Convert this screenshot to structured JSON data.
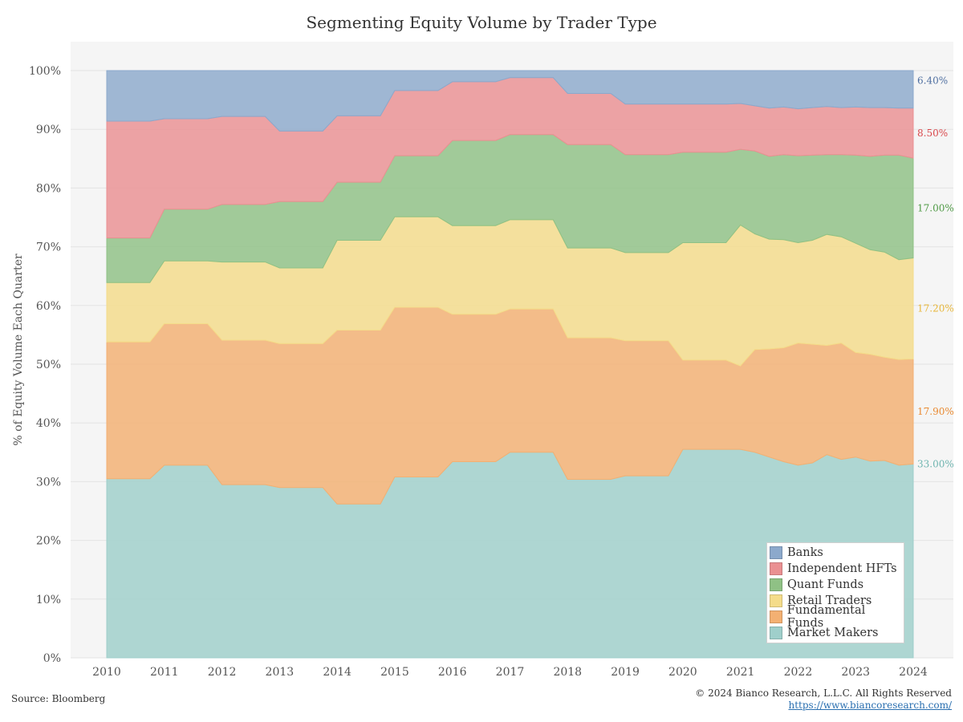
{
  "chart_data": {
    "type": "area",
    "title": "Segmenting Equity Volume by Trader Type",
    "ylabel": "% of Equity Volume Each Quarter",
    "xlabel": "",
    "ylim": [
      0,
      100
    ],
    "y_ticks": [
      "0%",
      "10%",
      "20%",
      "30%",
      "40%",
      "50%",
      "60%",
      "70%",
      "80%",
      "90%",
      "100%"
    ],
    "x_ticks": [
      "2010",
      "2011",
      "2012",
      "2013",
      "2014",
      "2015",
      "2016",
      "2017",
      "2018",
      "2019",
      "2020",
      "2021",
      "2022",
      "2023",
      "2024"
    ],
    "stacked": true,
    "grid": true,
    "legend_position": "bottom-right",
    "x": [
      2010,
      2010.75,
      2011,
      2011.75,
      2012,
      2012.75,
      2013,
      2013.75,
      2014,
      2014.75,
      2015,
      2015.75,
      2016,
      2016.75,
      2017,
      2017.75,
      2018,
      2018.75,
      2019,
      2019.75,
      2020,
      2020.75,
      2021,
      2021.25,
      2021.5,
      2021.75,
      2022,
      2022.25,
      2022.5,
      2022.75,
      2023,
      2023.25,
      2023.5,
      2023.75,
      2024
    ],
    "series": [
      {
        "name": "Market Makers",
        "color": "#9fcfcb",
        "values": [
          30.5,
          30.5,
          32.8,
          32.8,
          29.5,
          29.5,
          29.0,
          29.0,
          26.2,
          26.2,
          30.8,
          30.8,
          33.4,
          33.4,
          35.0,
          35.0,
          30.4,
          30.4,
          31.0,
          31.0,
          35.5,
          35.5,
          35.5,
          35.0,
          34.2,
          33.4,
          32.8,
          33.2,
          34.6,
          33.8,
          34.2,
          33.5,
          33.6,
          32.8,
          33.0
        ]
      },
      {
        "name": "Fundamental Funds",
        "color": "#f3b072",
        "values": [
          23.3,
          23.3,
          24.1,
          24.1,
          24.6,
          24.6,
          24.5,
          24.5,
          29.6,
          29.6,
          28.9,
          28.9,
          25.1,
          25.1,
          24.4,
          24.4,
          24.1,
          24.1,
          23.0,
          23.0,
          15.2,
          15.2,
          14.2,
          17.5,
          18.4,
          19.4,
          20.8,
          20.2,
          18.6,
          19.8,
          17.8,
          18.2,
          17.6,
          18.0,
          17.9
        ]
      },
      {
        "name": "Retail Traders",
        "color": "#f4dc8a",
        "values": [
          10.1,
          10.1,
          10.7,
          10.7,
          13.3,
          13.3,
          12.9,
          12.9,
          15.3,
          15.3,
          15.4,
          15.4,
          15.1,
          15.1,
          15.2,
          15.2,
          15.3,
          15.3,
          15.0,
          15.0,
          20.0,
          20.0,
          24.0,
          19.7,
          18.7,
          18.4,
          17.1,
          17.7,
          18.9,
          18.1,
          18.6,
          17.8,
          17.9,
          17.0,
          17.2
        ]
      },
      {
        "name": "Quant Funds",
        "color": "#8fc185",
        "values": [
          7.6,
          7.6,
          8.8,
          8.8,
          9.8,
          9.8,
          11.3,
          11.3,
          9.9,
          9.9,
          10.4,
          10.4,
          14.5,
          14.5,
          14.5,
          14.5,
          17.6,
          17.6,
          16.7,
          16.7,
          15.4,
          15.4,
          12.9,
          14.1,
          14.1,
          14.5,
          14.8,
          14.5,
          13.6,
          14.0,
          15.0,
          15.9,
          16.5,
          17.8,
          17.0
        ]
      },
      {
        "name": "Independent HFTs",
        "color": "#ea9092",
        "values": [
          19.9,
          19.9,
          15.4,
          15.4,
          15.0,
          15.0,
          12.0,
          12.0,
          11.3,
          11.3,
          11.1,
          11.1,
          10.0,
          10.0,
          9.7,
          9.7,
          8.7,
          8.7,
          8.6,
          8.6,
          8.2,
          8.2,
          7.8,
          7.7,
          8.2,
          8.1,
          8.0,
          8.1,
          8.2,
          8.0,
          8.2,
          8.3,
          8.1,
          8.0,
          8.5
        ]
      },
      {
        "name": "Banks",
        "color": "#8ca9cc",
        "values": [
          8.6,
          8.6,
          8.2,
          8.2,
          7.9,
          7.9,
          10.3,
          10.3,
          7.7,
          7.7,
          3.4,
          3.4,
          1.9,
          1.9,
          1.4,
          1.4,
          3.9,
          3.9,
          5.7,
          5.7,
          5.7,
          5.7,
          5.6,
          6.0,
          6.4,
          6.2,
          6.5,
          6.3,
          6.1,
          6.3,
          6.2,
          6.3,
          6.3,
          6.4,
          6.4
        ]
      }
    ],
    "end_labels": [
      {
        "series": "Banks",
        "text": "6.40%"
      },
      {
        "series": "Independent HFTs",
        "text": "8.50%"
      },
      {
        "series": "Quant Funds",
        "text": "17.00%"
      },
      {
        "series": "Retail Traders",
        "text": "17.20%"
      },
      {
        "series": "Fundamental Funds",
        "text": "17.90%"
      },
      {
        "series": "Market Makers",
        "text": "33.00%"
      }
    ],
    "legend": [
      "Banks",
      "Independent HFTs",
      "Quant Funds",
      "Retail Traders",
      "Fundamental Funds",
      "Market Makers"
    ]
  },
  "footer": {
    "source": "Source: Bloomberg",
    "copyright": "© 2024 Bianco Research, L.L.C. All Rights Reserved",
    "website": "https://www.biancoresearch.com/"
  }
}
